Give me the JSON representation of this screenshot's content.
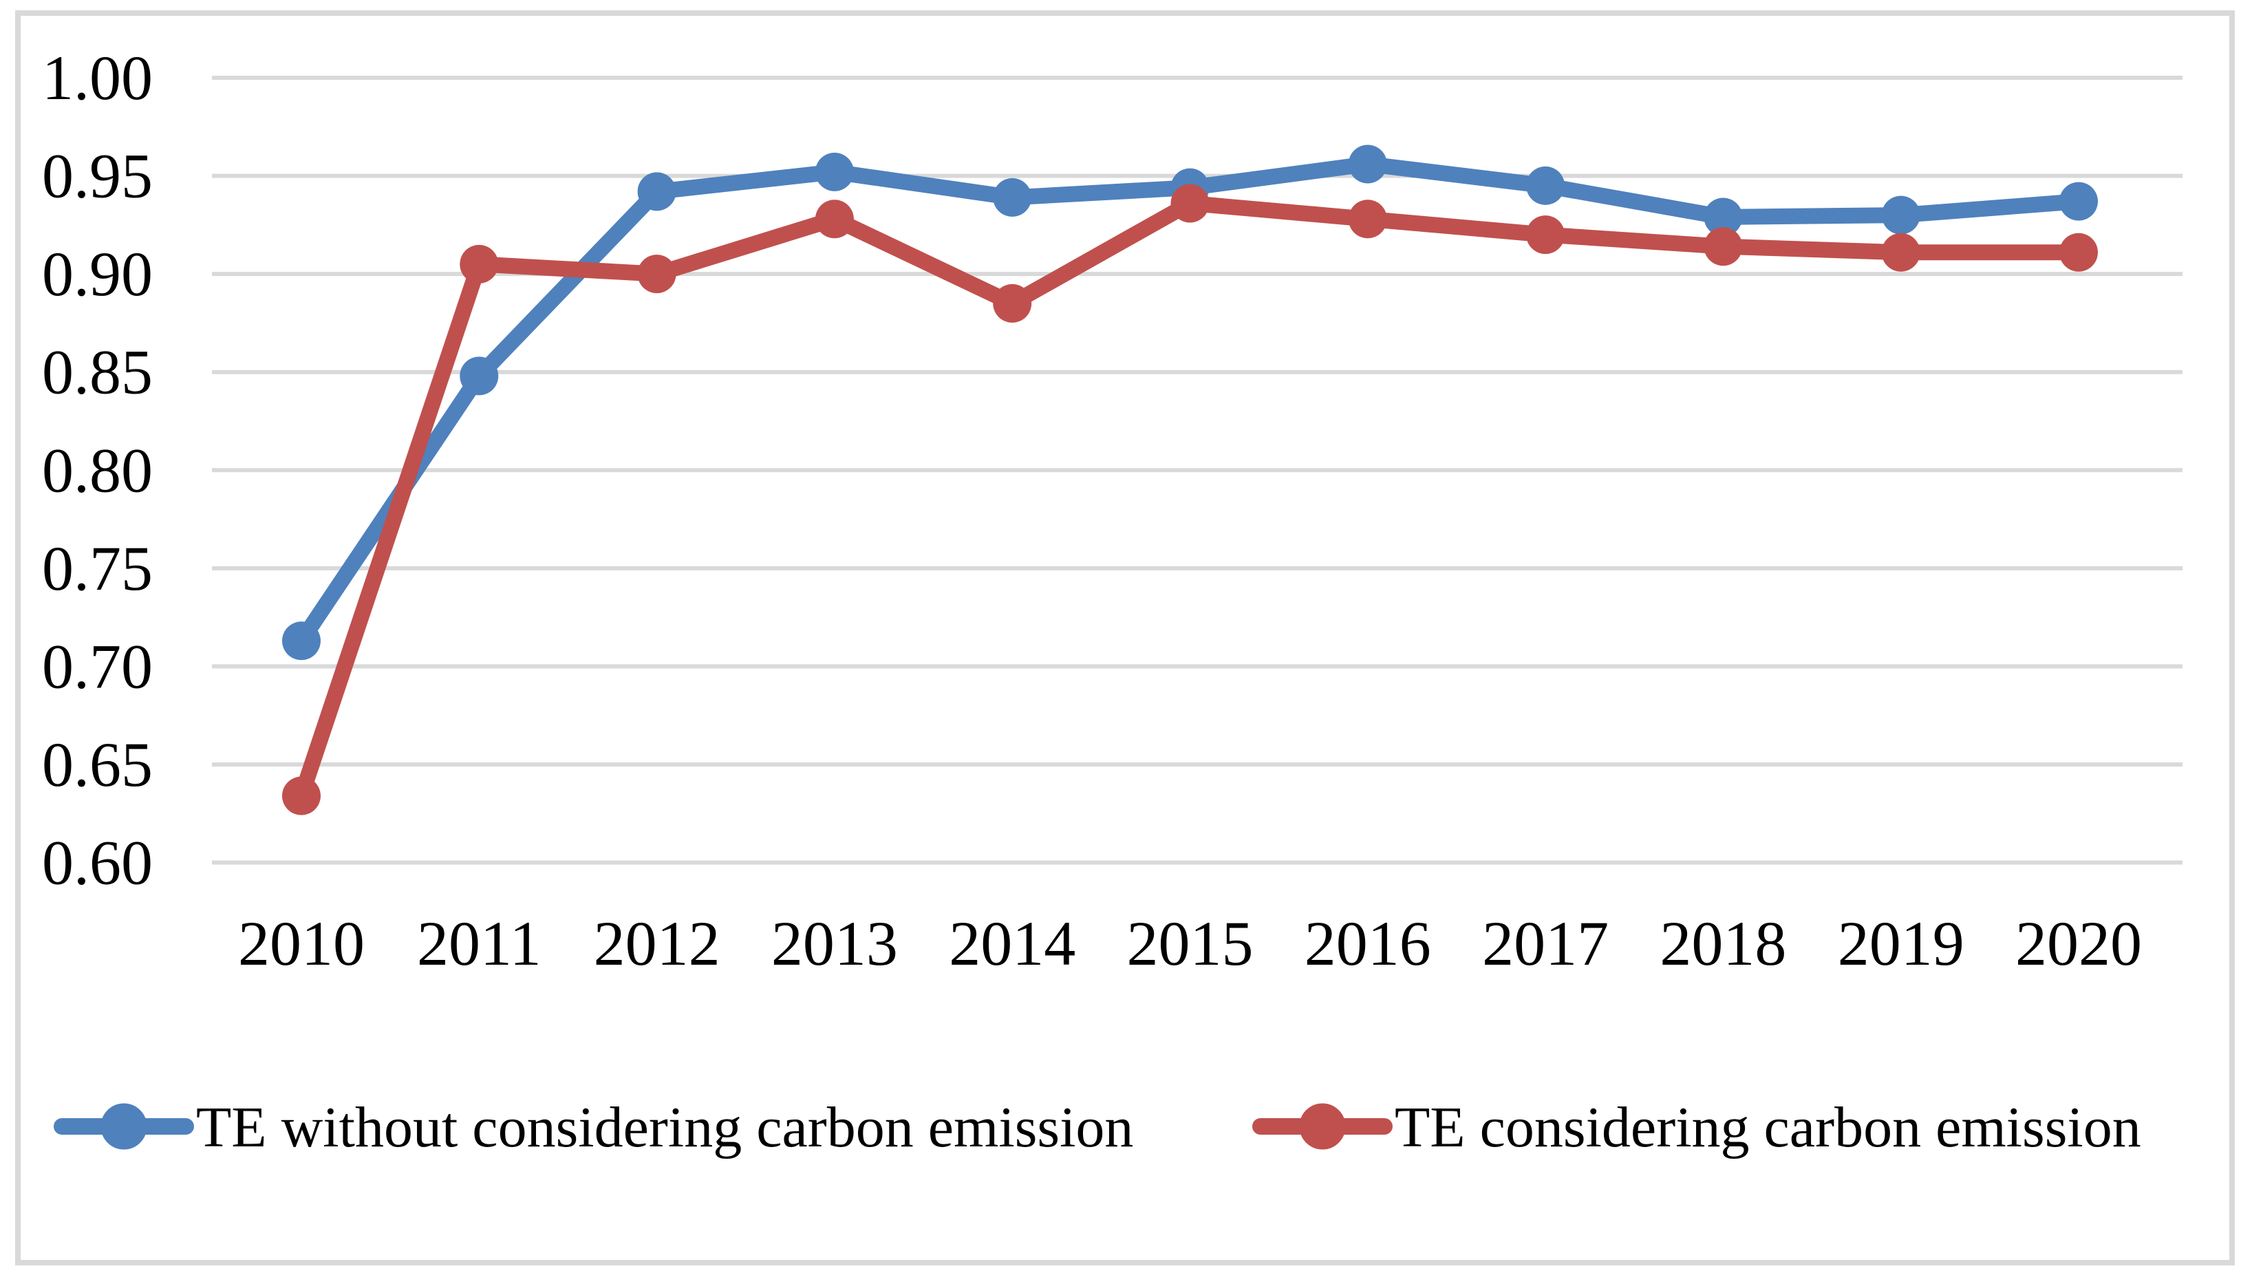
{
  "chart_data": {
    "type": "line",
    "title": "",
    "xlabel": "",
    "ylabel": "",
    "categories": [
      "2010",
      "2011",
      "2012",
      "2013",
      "2014",
      "2015",
      "2016",
      "2017",
      "2018",
      "2019",
      "2020"
    ],
    "series": [
      {
        "name": "TE without considering carbon emission",
        "color": "#4F81BD",
        "values": [
          0.713,
          0.848,
          0.942,
          0.952,
          0.939,
          0.944,
          0.956,
          0.945,
          0.929,
          0.93,
          0.937
        ]
      },
      {
        "name": "TE considering carbon emission",
        "color": "#C0504D",
        "values": [
          0.634,
          0.905,
          0.9,
          0.928,
          0.885,
          0.936,
          0.928,
          0.92,
          0.914,
          0.911,
          0.911
        ]
      }
    ],
    "ylim": [
      0.6,
      1.0
    ],
    "y_tick_step": 0.05,
    "y_ticks": [
      "1.00",
      "0.95",
      "0.90",
      "0.85",
      "0.80",
      "0.75",
      "0.70",
      "0.65",
      "0.60"
    ],
    "grid": true,
    "legend_position": "bottom",
    "colors": {
      "gridline": "#D9D9D9",
      "frame_border": "#D9D9D9",
      "text": "#000000",
      "background": "#FFFFFF"
    }
  }
}
